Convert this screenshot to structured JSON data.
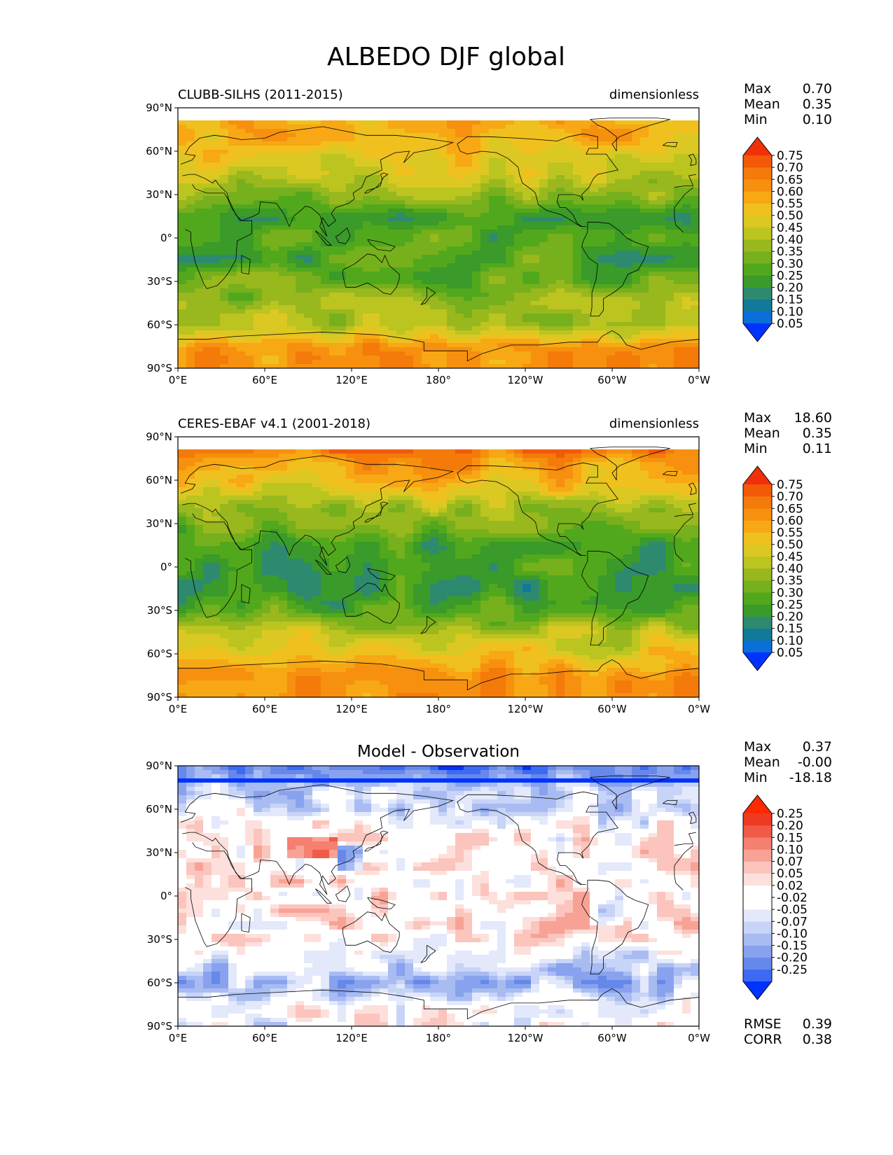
{
  "title": "ALBEDO DJF global",
  "lat_ticks": [
    "90°N",
    "60°N",
    "30°N",
    "0°",
    "30°S",
    "60°S",
    "90°S"
  ],
  "lon_ticks": [
    "0°E",
    "60°E",
    "120°E",
    "180°",
    "120°W",
    "60°W",
    "0°W"
  ],
  "colors": {
    "albedo": [
      "#0033ff",
      "#0a6fd8",
      "#117a9a",
      "#2e8a6e",
      "#3a9a2a",
      "#52a81c",
      "#76b01c",
      "#98b81e",
      "#bcc420",
      "#dcc822",
      "#f0c01e",
      "#f7a814",
      "#f6900e",
      "#f47a0a",
      "#f25a08",
      "#f03008"
    ],
    "diff": [
      "#0033ff",
      "#3d6af2",
      "#6688ea",
      "#88a2ee",
      "#a8bcf2",
      "#c7d4f7",
      "#e3e9fb",
      "#ffffff",
      "#ffffff",
      "#fde0dc",
      "#fbc4bc",
      "#f8a296",
      "#f57f70",
      "#f25a48",
      "#ee3a22",
      "#ff2a00"
    ]
  },
  "panels": [
    {
      "id": "model",
      "left_title": "CLUBB-SILHS (2011-2015)",
      "right_title": "dimensionless",
      "center_title": "",
      "stats": [
        {
          "label": "Max",
          "value": "0.70"
        },
        {
          "label": "Mean",
          "value": "0.35"
        },
        {
          "label": "Min",
          "value": "0.10"
        }
      ],
      "bottom_stats": [],
      "colorbar_levels": [
        "0.75",
        "0.70",
        "0.65",
        "0.60",
        "0.55",
        "0.50",
        "0.45",
        "0.40",
        "0.35",
        "0.30",
        "0.25",
        "0.20",
        "0.15",
        "0.10",
        "0.05"
      ]
    },
    {
      "id": "obs",
      "left_title": "CERES-EBAF v4.1 (2001-2018)",
      "right_title": "dimensionless",
      "center_title": "",
      "stats": [
        {
          "label": "Max",
          "value": "18.60"
        },
        {
          "label": "Mean",
          "value": "0.35"
        },
        {
          "label": "Min",
          "value": "0.11"
        }
      ],
      "bottom_stats": [],
      "colorbar_levels": [
        "0.75",
        "0.70",
        "0.65",
        "0.60",
        "0.55",
        "0.50",
        "0.45",
        "0.40",
        "0.35",
        "0.30",
        "0.25",
        "0.20",
        "0.15",
        "0.10",
        "0.05"
      ]
    },
    {
      "id": "diff",
      "left_title": "",
      "right_title": "",
      "center_title": "Model - Observation",
      "stats": [
        {
          "label": "Max",
          "value": "0.37"
        },
        {
          "label": "Mean",
          "value": "-0.00"
        },
        {
          "label": "Min",
          "value": "-18.18"
        }
      ],
      "bottom_stats": [
        {
          "label": "RMSE",
          "value": "0.39"
        },
        {
          "label": "CORR",
          "value": "0.38"
        }
      ],
      "colorbar_levels": [
        "0.25",
        "0.20",
        "0.15",
        "0.10",
        "0.07",
        "0.05",
        "0.02",
        "-0.02",
        "-0.05",
        "-0.07",
        "-0.10",
        "-0.15",
        "-0.20",
        "-0.25"
      ]
    }
  ],
  "chart_data": [
    {
      "type": "heatmap",
      "projection": "plate carree (0° to 360° longitude)",
      "title": "CLUBB-SILHS (2011-2015)",
      "units": "dimensionless",
      "xlim": [
        0,
        360
      ],
      "ylim": [
        -90,
        90
      ],
      "color_levels": [
        0.05,
        0.1,
        0.15,
        0.2,
        0.25,
        0.3,
        0.35,
        0.4,
        0.45,
        0.5,
        0.55,
        0.6,
        0.65,
        0.7,
        0.75
      ],
      "max": 0.7,
      "mean": 0.35,
      "min": 0.1,
      "lat": [
        -90,
        -75,
        -60,
        -45,
        -30,
        -15,
        0,
        15,
        30,
        45,
        60,
        75,
        90
      ],
      "zonal_mean_estimate": [
        0.62,
        0.62,
        0.4,
        0.38,
        0.3,
        0.27,
        0.28,
        0.27,
        0.36,
        0.45,
        0.52,
        0.56,
        0.56
      ]
    },
    {
      "type": "heatmap",
      "projection": "plate carree (0° to 360° longitude)",
      "title": "CERES-EBAF v4.1 (2001-2018)",
      "units": "dimensionless",
      "xlim": [
        0,
        360
      ],
      "ylim": [
        -90,
        90
      ],
      "color_levels": [
        0.05,
        0.1,
        0.15,
        0.2,
        0.25,
        0.3,
        0.35,
        0.4,
        0.45,
        0.5,
        0.55,
        0.6,
        0.65,
        0.7,
        0.75
      ],
      "max": 18.6,
      "mean": 0.35,
      "min": 0.11,
      "lat": [
        -90,
        -75,
        -60,
        -45,
        -30,
        -15,
        0,
        15,
        30,
        45,
        60,
        75,
        90
      ],
      "zonal_mean_estimate": [
        0.62,
        0.62,
        0.5,
        0.42,
        0.28,
        0.22,
        0.24,
        0.24,
        0.33,
        0.44,
        0.54,
        0.62,
        0.75
      ]
    },
    {
      "type": "heatmap",
      "projection": "plate carree (0° to 360° longitude)",
      "title": "Model - Observation",
      "xlim": [
        0,
        360
      ],
      "ylim": [
        -90,
        90
      ],
      "color_levels": [
        -0.25,
        -0.2,
        -0.15,
        -0.1,
        -0.07,
        -0.05,
        -0.02,
        0.02,
        0.05,
        0.07,
        0.1,
        0.15,
        0.2,
        0.25
      ],
      "max": 0.37,
      "mean": -0.0,
      "min": -18.18,
      "rmse": 0.39,
      "corr": 0.38,
      "lat": [
        -90,
        -75,
        -60,
        -45,
        -30,
        -15,
        0,
        15,
        30,
        45,
        60,
        75,
        90
      ],
      "zonal_mean_estimate": [
        0.0,
        0.0,
        -0.1,
        -0.04,
        0.02,
        0.05,
        0.04,
        0.03,
        0.03,
        0.01,
        -0.02,
        -0.06,
        -0.19
      ]
    }
  ]
}
